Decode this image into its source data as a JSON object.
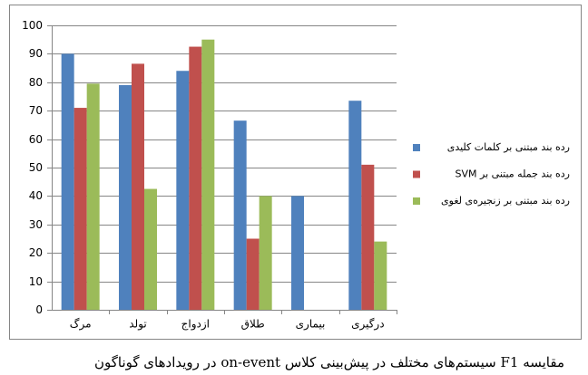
{
  "chart_data": {
    "type": "bar",
    "caption": "مقایسه F1 سیستم‌های مختلف در پیش‌بینی کلاس on-event در رویدادهای گوناگون",
    "categories": [
      "مرگ",
      "تولد",
      "ازدواج",
      "طلاق",
      "بیماری",
      "درگیری"
    ],
    "series": [
      {
        "name": "رده بند مبتنی بر کلمات کلیدی",
        "color": "#4f81bd",
        "values": [
          90,
          79,
          84,
          66.5,
          40,
          73.5
        ]
      },
      {
        "name": "رده بند جمله مبتنی بر SVM",
        "color": "#c0504d",
        "values": [
          71,
          86.5,
          92.5,
          25,
          0,
          51
        ]
      },
      {
        "name": "رده بند مبتنی بر زنجیره‌ی لغوی",
        "color": "#9bbb59",
        "values": [
          79.5,
          42.5,
          95,
          40,
          0,
          24
        ]
      }
    ],
    "ylim": [
      0,
      100
    ],
    "yticks": [
      0,
      10,
      20,
      30,
      40,
      50,
      60,
      70,
      80,
      90,
      100
    ],
    "grid": true,
    "legend": "right"
  }
}
